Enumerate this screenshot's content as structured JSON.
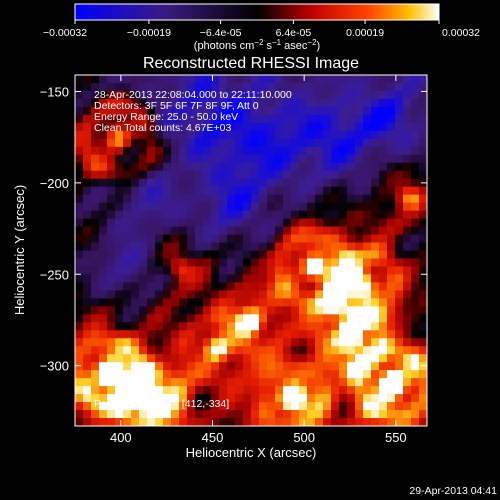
{
  "colorbar": {
    "tick_labels": [
      "-0.00032",
      "-0.00019",
      "-6.4e-05",
      "6.4e-05",
      "0.00019",
      "0.00032"
    ],
    "tick_values": [
      -0.00032,
      -0.00019,
      -6.4e-05,
      6.4e-05,
      0.00019,
      0.00032
    ],
    "range": [
      -0.00032,
      0.00032
    ],
    "unit_label": "(photons cm^-2 s^-1 asec^-2)",
    "colormap": "rhessi-bluewhite-red-yellow"
  },
  "chart_data": {
    "type": "heatmap",
    "title": "Reconstructed RHESSI Image",
    "xlabel": "Heliocentric X (arcsec)",
    "ylabel": "Heliocentric Y (arcsec)",
    "xlim": [
      375,
      567
    ],
    "ylim": [
      -333,
      -141
    ],
    "xticks": [
      400,
      450,
      500,
      550
    ],
    "yticks": [
      -150,
      -200,
      -250,
      -300
    ],
    "annotations": [
      "28-Apr-2013 22:08:04.000 to 22:11:10.000",
      "Detectors: 3F 5F 6F 7F 8F 9F, Att 0",
      "Energy Range: 25.0 - 50.0 keV",
      "Clean     Total counts: 4.67E+03"
    ],
    "peak_label": "Position of Peak = [412,-334]",
    "peak": [
      412,
      -334
    ],
    "grid_size": [
      44,
      44
    ],
    "value_range": [
      -0.00032,
      0.00032
    ]
  },
  "footer": {
    "timestamp": "29-Apr-2013 04:41"
  },
  "colors": {
    "background": "#000000",
    "text": "#ffffff"
  }
}
